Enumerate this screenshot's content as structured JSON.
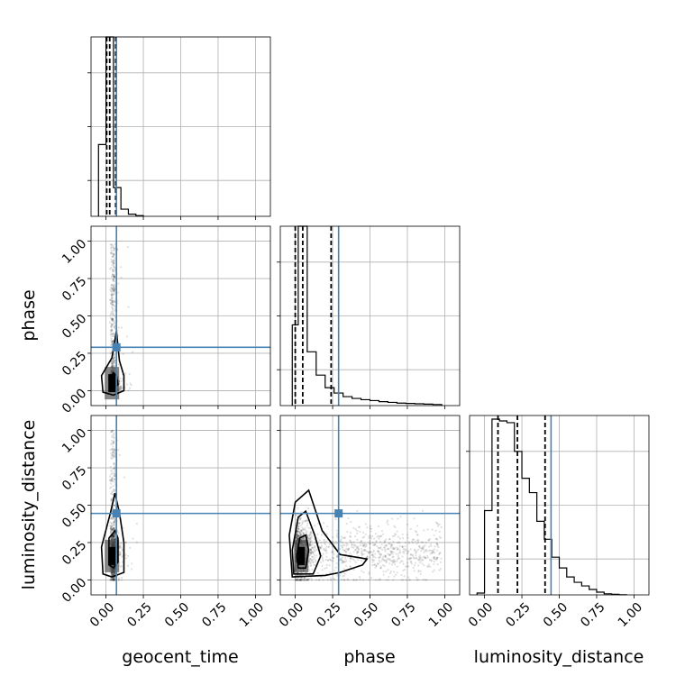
{
  "chart_data": {
    "type": "corner",
    "parameters": [
      "geocent_time",
      "phase",
      "luminosity_distance"
    ],
    "tick_labels": [
      "0.00",
      "0.25",
      "0.50",
      "0.75",
      "1.00"
    ],
    "truth_color": "#4682b4",
    "axis_range": [
      -0.1,
      1.1
    ],
    "truths": {
      "geocent_time": 0.07,
      "phase": 0.29,
      "luminosity_distance": 0.445
    },
    "quantiles": {
      "geocent_time": [
        0.005,
        0.025,
        0.065
      ],
      "phase": [
        0.0,
        0.05,
        0.24
      ],
      "luminosity_distance": [
        0.09,
        0.22,
        0.405
      ]
    },
    "histograms": {
      "geocent_time": {
        "bin_edges": [
          -0.05,
          0.0,
          0.05,
          0.1,
          0.15,
          0.2,
          0.25
        ],
        "counts": [
          0.4,
          1.0,
          0.16,
          0.04,
          0.012,
          0.004
        ]
      },
      "phase": {
        "bin_edges": [
          -0.02,
          0.02,
          0.08,
          0.14,
          0.2,
          0.26,
          0.32,
          0.38,
          0.44,
          0.5,
          0.56,
          0.62,
          0.68,
          0.74,
          0.8,
          0.86,
          0.92,
          0.98
        ],
        "counts": [
          0.45,
          1.0,
          0.3,
          0.17,
          0.1,
          0.07,
          0.05,
          0.04,
          0.033,
          0.028,
          0.022,
          0.018,
          0.014,
          0.012,
          0.01,
          0.008,
          0.006
        ]
      },
      "luminosity_distance": {
        "bin_edges": [
          -0.05,
          0.0,
          0.05,
          0.1,
          0.15,
          0.2,
          0.25,
          0.3,
          0.35,
          0.4,
          0.45,
          0.5,
          0.55,
          0.6,
          0.65,
          0.7,
          0.75,
          0.8,
          0.85,
          0.9,
          0.95
        ],
        "counts": [
          0.01,
          0.47,
          0.98,
          0.97,
          0.96,
          0.8,
          0.65,
          0.57,
          0.41,
          0.31,
          0.21,
          0.15,
          0.1,
          0.07,
          0.05,
          0.03,
          0.015,
          0.006,
          0.003,
          0.001
        ]
      }
    },
    "density_peaks": {
      "phase_vs_geocent_time": [
        0.04,
        0.05
      ],
      "luminosity_distance_vs_geocent_time": [
        0.04,
        0.16
      ],
      "luminosity_distance_vs_phase": [
        0.04,
        0.16
      ]
    },
    "grid": true
  }
}
